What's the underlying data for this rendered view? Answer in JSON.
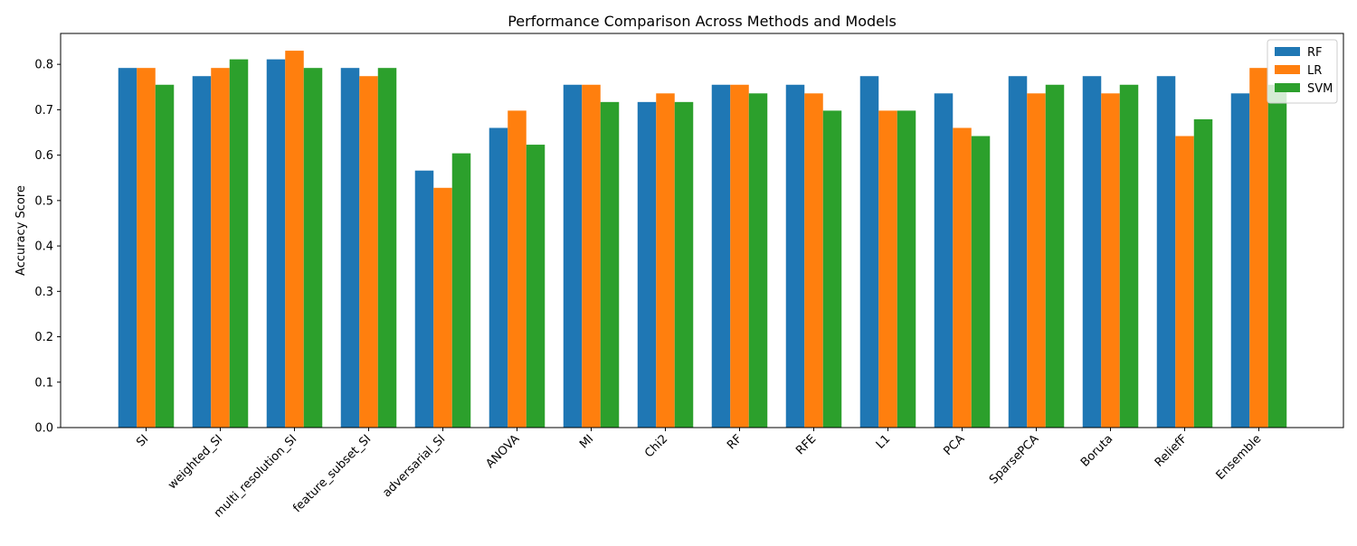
{
  "chart_data": {
    "type": "bar",
    "title": "Performance Comparison Across Methods and Models",
    "xlabel": "",
    "ylabel": "Accuracy Score",
    "ylim": [
      0,
      0.868
    ],
    "yticks": [
      0.0,
      0.1,
      0.2,
      0.3,
      0.4,
      0.5,
      0.6,
      0.7,
      0.8
    ],
    "ytick_labels": [
      "0.0",
      "0.1",
      "0.2",
      "0.3",
      "0.4",
      "0.5",
      "0.6",
      "0.7",
      "0.8"
    ],
    "grid": false,
    "legend_position": "top-right",
    "categories": [
      "SI",
      "weighted_SI",
      "multi_resolution_SI",
      "feature_subset_SI",
      "adversarial_SI",
      "ANOVA",
      "MI",
      "Chi2",
      "RF",
      "RFE",
      "L1",
      "PCA",
      "SparsePCA",
      "Boruta",
      "ReliefF",
      "Ensemble"
    ],
    "series": [
      {
        "name": "RF",
        "color": "#1f77b4",
        "values": [
          0.792,
          0.774,
          0.811,
          0.792,
          0.566,
          0.66,
          0.755,
          0.717,
          0.755,
          0.755,
          0.774,
          0.736,
          0.774,
          0.774,
          0.774,
          0.736
        ]
      },
      {
        "name": "LR",
        "color": "#ff7f0e",
        "values": [
          0.792,
          0.792,
          0.83,
          0.774,
          0.528,
          0.698,
          0.755,
          0.736,
          0.755,
          0.736,
          0.698,
          0.66,
          0.736,
          0.736,
          0.642,
          0.792
        ]
      },
      {
        "name": "SVM",
        "color": "#2ca02c",
        "values": [
          0.755,
          0.811,
          0.792,
          0.792,
          0.604,
          0.623,
          0.717,
          0.717,
          0.736,
          0.698,
          0.698,
          0.642,
          0.755,
          0.755,
          0.679,
          0.755
        ]
      }
    ]
  }
}
